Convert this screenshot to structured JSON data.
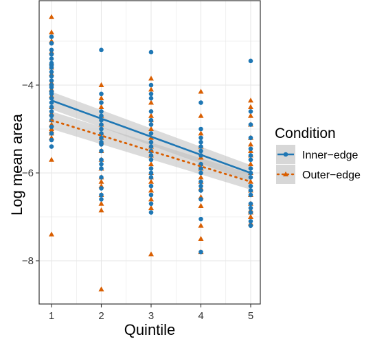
{
  "chart_data": {
    "type": "scatter",
    "title": "",
    "xlabel": "Quintile",
    "ylabel": "Log mean area",
    "xlim": [
      0.85,
      5.15
    ],
    "ylim": [
      -9.0,
      -3.0
    ],
    "x_ticks": [
      1,
      2,
      3,
      4,
      5
    ],
    "y_ticks": [
      -8,
      -6,
      -4
    ],
    "y_tick_labels": [
      "−8",
      "−6",
      "−4"
    ],
    "grid": true,
    "legend": {
      "title": "Condition",
      "position": "right",
      "entries": [
        "Inner−edge",
        "Outer−edge"
      ]
    },
    "series": [
      {
        "name": "Inner−edge",
        "marker": "circle",
        "color": "#1f77b4",
        "line_style": "solid",
        "fit": {
          "type": "linear",
          "x": [
            1,
            5
          ],
          "y": [
            -4.35,
            -6.0
          ]
        },
        "band": {
          "upper": [
            -4.15,
            -5.82
          ],
          "lower": [
            -4.55,
            -6.2
          ]
        },
        "x": [
          1,
          1,
          1,
          1,
          1,
          1,
          1,
          1,
          1,
          1,
          1,
          1,
          1,
          1,
          1,
          1,
          1,
          1,
          1,
          1,
          1,
          1,
          1,
          1,
          1,
          2,
          2,
          2,
          2,
          2,
          2,
          2,
          2,
          2,
          2,
          2,
          2,
          2,
          2,
          2,
          2,
          2,
          2,
          2,
          2,
          3,
          3,
          3,
          3,
          3,
          3,
          3,
          3,
          3,
          3,
          3,
          3,
          3,
          3,
          3,
          3,
          3,
          3,
          3,
          3,
          4,
          4,
          4,
          4,
          4,
          4,
          4,
          4,
          4,
          4,
          4,
          4,
          4,
          4,
          4,
          4,
          5,
          5,
          5,
          5,
          5,
          5,
          5,
          5,
          5,
          5,
          5,
          5,
          5,
          5,
          5,
          5,
          5,
          5
        ],
        "y": [
          -2.9,
          -3.05,
          -3.2,
          -3.3,
          -3.4,
          -3.5,
          -3.6,
          -3.7,
          -3.8,
          -3.9,
          -4.0,
          -4.05,
          -4.15,
          -4.2,
          -4.3,
          -4.4,
          -4.5,
          -4.6,
          -4.7,
          -4.8,
          -4.95,
          -5.1,
          -5.25,
          -5.4,
          -3.55,
          -3.2,
          -4.2,
          -4.4,
          -4.6,
          -4.8,
          -5.0,
          -5.2,
          -5.35,
          -5.5,
          -5.7,
          -5.9,
          -6.1,
          -6.35,
          -6.6,
          -4.7,
          -4.9,
          -5.1,
          -5.3,
          -5.8,
          -6.5,
          -3.25,
          -4.0,
          -4.3,
          -4.6,
          -4.9,
          -5.1,
          -5.3,
          -5.5,
          -5.7,
          -5.9,
          -6.1,
          -6.3,
          -6.5,
          -6.7,
          -6.9,
          -4.2,
          -4.8,
          -5.6,
          -6.0,
          -5.4,
          -4.4,
          -5.0,
          -5.2,
          -5.4,
          -5.6,
          -5.8,
          -6.0,
          -6.2,
          -6.4,
          -6.6,
          -7.05,
          -7.8,
          -5.3,
          -5.5,
          -5.9,
          -6.3,
          -3.45,
          -4.6,
          -4.9,
          -5.2,
          -5.45,
          -5.7,
          -5.9,
          -6.1,
          -6.3,
          -6.5,
          -6.7,
          -6.9,
          -7.1,
          -7.2,
          -5.6,
          -6.0,
          -6.4,
          -6.8
        ]
      },
      {
        "name": "Outer−edge",
        "marker": "triangle",
        "color": "#d95f02",
        "line_style": "dotted",
        "fit": {
          "type": "linear",
          "x": [
            1,
            5
          ],
          "y": [
            -4.8,
            -6.2
          ]
        },
        "band": {
          "upper": [
            -4.6,
            -6.02
          ],
          "lower": [
            -5.0,
            -6.38
          ]
        },
        "x": [
          1,
          1,
          1,
          1,
          1,
          1,
          1,
          1,
          1,
          1,
          1,
          1,
          1,
          1,
          1,
          1,
          1,
          1,
          1,
          1,
          2,
          2,
          2,
          2,
          2,
          2,
          2,
          2,
          2,
          2,
          2,
          2,
          2,
          2,
          2,
          2,
          2,
          2,
          3,
          3,
          3,
          3,
          3,
          3,
          3,
          3,
          3,
          3,
          3,
          3,
          3,
          3,
          3,
          3,
          3,
          3,
          4,
          4,
          4,
          4,
          4,
          4,
          4,
          4,
          4,
          4,
          4,
          4,
          4,
          4,
          4,
          5,
          5,
          5,
          5,
          5,
          5,
          5,
          5,
          5,
          5,
          5,
          5,
          5,
          5,
          5,
          5,
          5,
          5
        ],
        "y": [
          -2.45,
          -2.8,
          -3.0,
          -3.25,
          -3.5,
          -3.75,
          -3.95,
          -4.1,
          -4.25,
          -4.5,
          -4.65,
          -4.8,
          -4.9,
          -5.0,
          -5.05,
          -5.1,
          -5.2,
          -5.7,
          -7.4,
          -3.6,
          -4.0,
          -4.3,
          -4.5,
          -4.7,
          -4.9,
          -5.1,
          -5.3,
          -5.5,
          -5.7,
          -5.9,
          -6.1,
          -6.3,
          -6.5,
          -6.7,
          -6.85,
          -8.65,
          -5.2,
          -6.2,
          -3.85,
          -4.1,
          -4.4,
          -4.7,
          -5.0,
          -5.2,
          -5.4,
          -5.6,
          -5.8,
          -6.0,
          -6.2,
          -6.4,
          -6.6,
          -6.8,
          -7.85,
          -4.8,
          -5.5,
          -6.1,
          -4.15,
          -4.7,
          -5.1,
          -5.4,
          -5.65,
          -5.9,
          -6.1,
          -6.35,
          -6.55,
          -6.75,
          -7.2,
          -7.5,
          -7.8,
          -5.8,
          -6.2,
          -4.35,
          -4.5,
          -4.7,
          -4.9,
          -5.2,
          -5.5,
          -5.8,
          -6.0,
          -6.2,
          -6.4,
          -6.7,
          -6.9,
          -7.0,
          -7.15,
          -5.35,
          -5.6,
          -6.5,
          -6.85
        ]
      }
    ]
  },
  "colors": {
    "inner": "#1f77b4",
    "outer": "#d95f02",
    "band": "#bdbdbd",
    "grid": "#e6e6e6",
    "panel_border": "#333333"
  }
}
